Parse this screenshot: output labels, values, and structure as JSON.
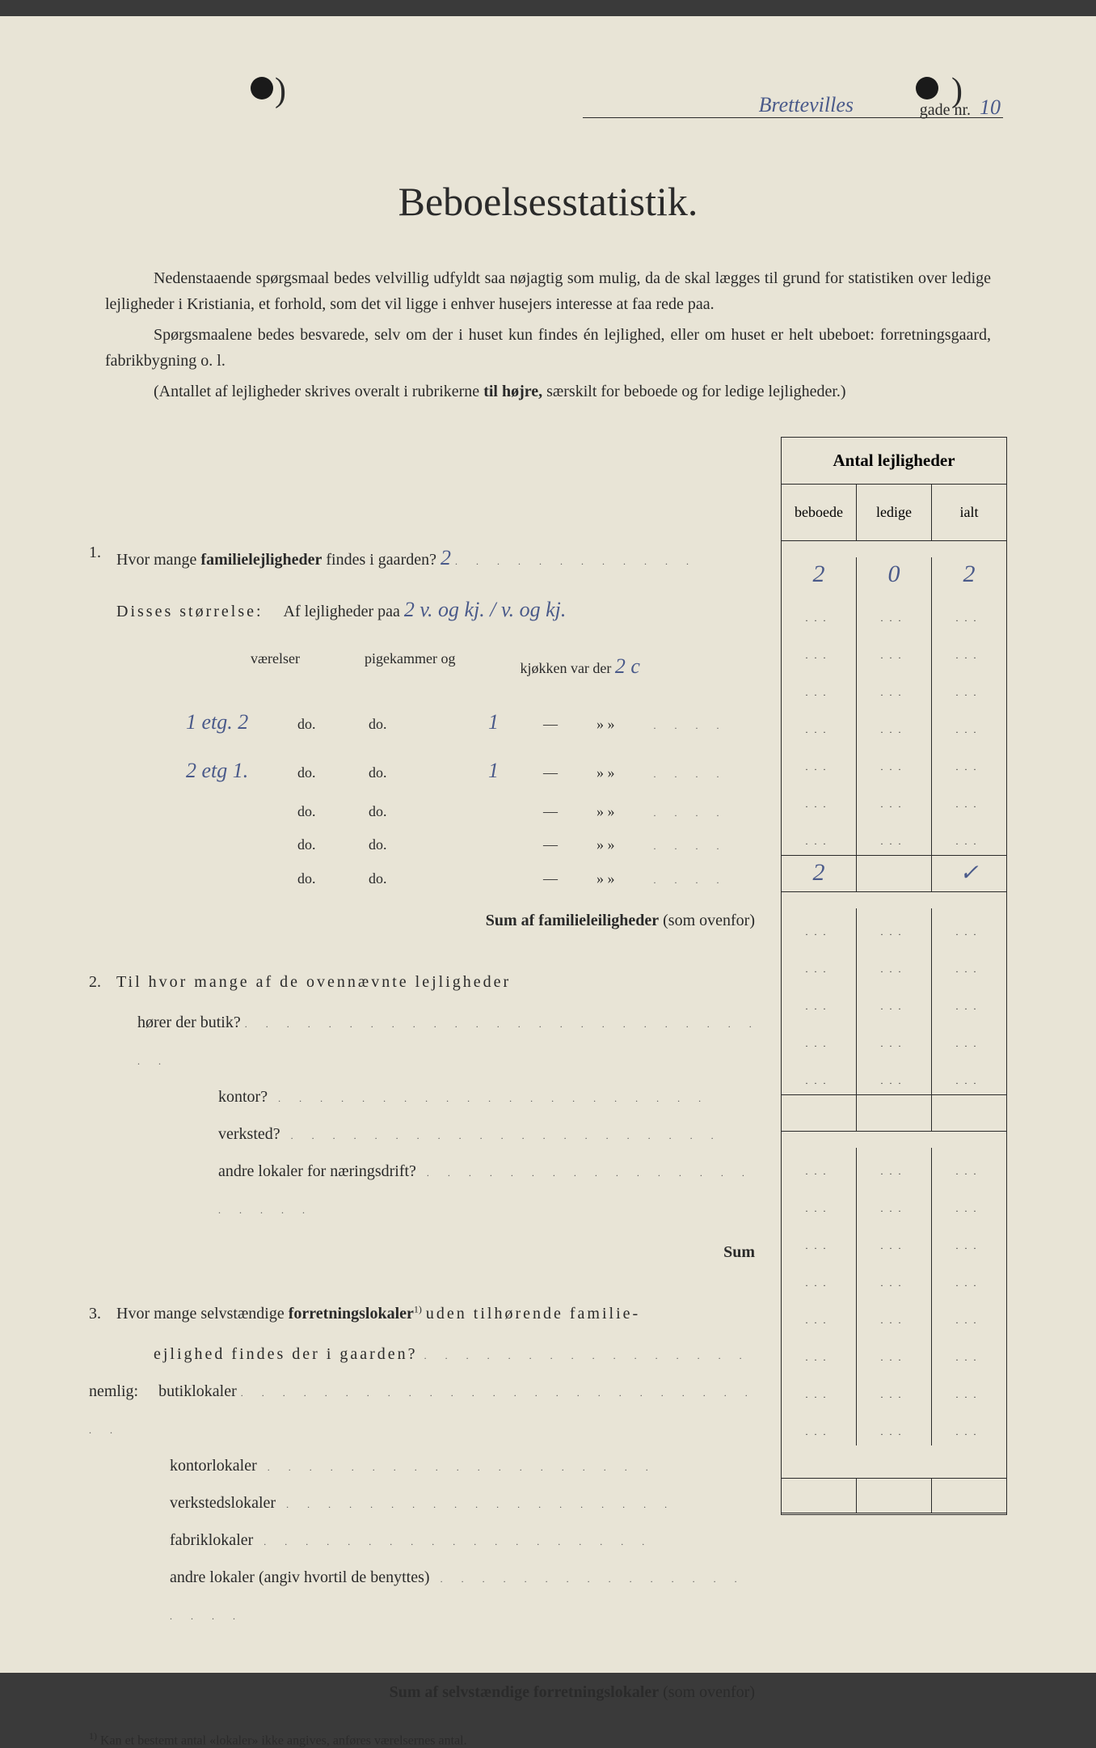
{
  "header": {
    "street_name": "Brettevilles",
    "gade_label": "gade nr.",
    "street_no": "10"
  },
  "title": "Beboelsesstatistik.",
  "intro": {
    "p1": "Nedenstaaende spørgsmaal bedes velvillig udfyldt saa nøjagtig som mulig, da de skal lægges til grund for statistiken over ledige lejligheder i Kristiania, et forhold, som det vil ligge i enhver husejers interesse at faa rede paa.",
    "p2": "Spørgsmaalene bedes besvarede, selv om der i huset kun findes én lejlighed, eller om huset er helt ubeboet: forretningsgaard, fabrikbygning o. l.",
    "p3_prefix": "(Antallet af lejligheder skrives overalt i rubrikerne",
    "p3_bold": "til højre,",
    "p3_suffix": "særskilt for beboede og for ledige lejligheder.)"
  },
  "table": {
    "header_main": "Antal lejligheder",
    "col1": "beboede",
    "col2": "ledige",
    "col3": "ialt"
  },
  "q1": {
    "num": "1.",
    "text_prefix": "Hvor mange",
    "text_bold": "familielejligheder",
    "text_suffix": "findes i gaarden?",
    "hw_count": "2",
    "disses": "Disses størrelse:",
    "af_lejl": "Af lejligheder paa",
    "hw_spec": "2 v. og kj. / v. og kj.",
    "sub_vaerelser": "værelser",
    "sub_pigekammer": "pigekammer og",
    "sub_kjokken": "kjøkken var der",
    "hw_kjokken": "2 c",
    "rows": [
      {
        "prefix": "1 etg.",
        "prefix_no": "2",
        "do1": "do.",
        "do2": "do.",
        "dash": "1",
        "sep": "—",
        "marks": "»    »"
      },
      {
        "prefix": "2 etg",
        "prefix_no": "1.",
        "do1": "do.",
        "do2": "do.",
        "dash": "1",
        "sep": "—",
        "marks": "»    »"
      },
      {
        "prefix": "",
        "prefix_no": "",
        "do1": "do.",
        "do2": "do.",
        "dash": "",
        "sep": "—",
        "marks": "»    »"
      },
      {
        "prefix": "",
        "prefix_no": "",
        "do1": "do.",
        "do2": "do.",
        "dash": "",
        "sep": "—",
        "marks": "»    »"
      },
      {
        "prefix": "",
        "prefix_no": "",
        "do1": "do.",
        "do2": "do.",
        "dash": "",
        "sep": "—",
        "marks": "»    »"
      }
    ],
    "sum_label_bold": "Sum af familieleiligheder",
    "sum_label_suffix": "(som ovenfor)",
    "values": {
      "beboede": "2",
      "ledige": "0",
      "ialt": "2"
    },
    "sum_value": "2",
    "sum_check": "✓"
  },
  "q2": {
    "num": "2.",
    "line1": "Til hvor mange af de ovennævnte lejligheder",
    "line2": "hører der butik?",
    "items": [
      "kontor?",
      "verksted?",
      "andre lokaler for næringsdrift?"
    ],
    "sum_label": "Sum"
  },
  "q3": {
    "num": "3.",
    "text_prefix": "Hvor mange selvstændige",
    "text_bold": "forretningslokaler",
    "footnote_marker": "1)",
    "text_mid": "uden tilhørende familie-",
    "text_suffix": "ejlighed findes der i gaarden?",
    "nemlig": "nemlig:",
    "items": [
      "butiklokaler",
      "kontorlokaler",
      "verkstedslokaler",
      "fabriklokaler",
      "andre lokaler (angiv hvortil de benyttes)"
    ],
    "sum_label_bold": "Sum af selvstændige forretningslokaler",
    "sum_label_suffix": "(som ovenfor)"
  },
  "footnote": {
    "marker": "1)",
    "text": "Kan et bestemt antal «lokaler» ikke angives, anføres værelsernes antal."
  }
}
